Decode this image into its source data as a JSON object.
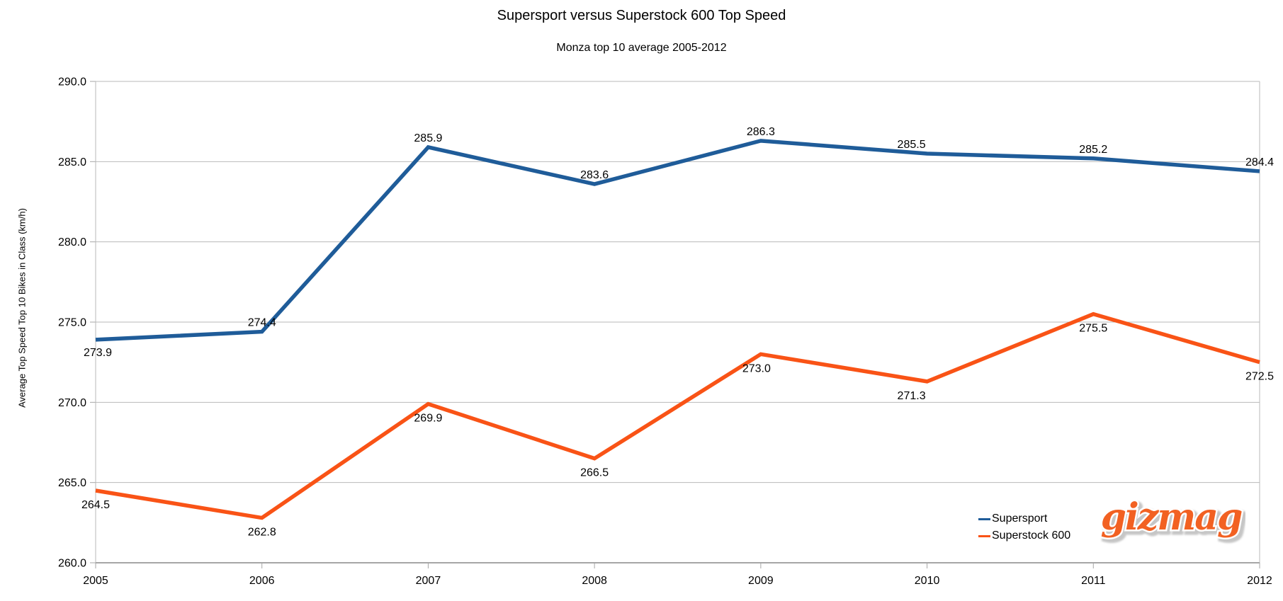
{
  "chart_data": {
    "type": "line",
    "title": "Supersport versus Superstock 600 Top Speed",
    "subtitle": "Monza top 10 average 2005-2012",
    "xlabel": "",
    "ylabel": "Average Top Speed Top 10 Bikes in Class (km/h)",
    "categories": [
      "2005",
      "2006",
      "2007",
      "2008",
      "2009",
      "2010",
      "2011",
      "2012"
    ],
    "ylim": [
      260,
      290
    ],
    "ytick_labels": [
      "260.0",
      "265.0",
      "270.0",
      "275.0",
      "280.0",
      "285.0",
      "290.0"
    ],
    "grid": true,
    "legend_position": "inside-bottom-right",
    "series": [
      {
        "name": "Supersport",
        "color": "#1F5C99",
        "label_position": "above",
        "values": [
          273.9,
          274.4,
          285.9,
          283.6,
          286.3,
          285.5,
          285.2,
          284.4
        ]
      },
      {
        "name": "Superstock 600",
        "color": "#F95316",
        "label_position": "below",
        "values": [
          264.5,
          262.8,
          269.9,
          266.5,
          273.0,
          271.3,
          275.5,
          272.5
        ]
      }
    ],
    "colors": {
      "gridline": "#b9b9b9",
      "axis": "#a6a6a6",
      "text": "#000000"
    }
  },
  "branding": {
    "logo_text": "gizmag",
    "logo_color": "#F26122"
  }
}
